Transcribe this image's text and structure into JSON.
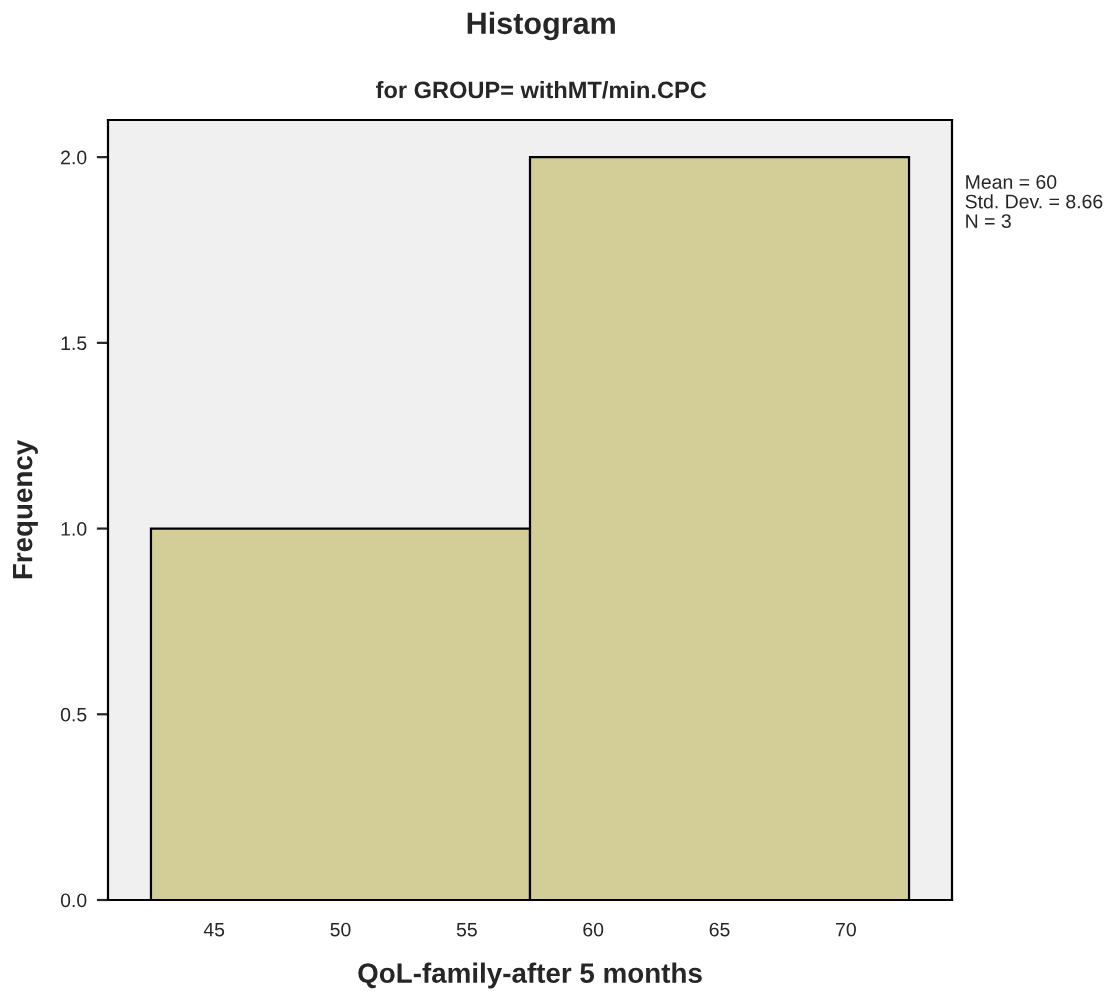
{
  "chart_data": {
    "type": "histogram",
    "title": "Histogram",
    "subtitle": "for GROUP= withMT/min.CPC",
    "xlabel": "QoL-family-after 5 months",
    "ylabel": "Frequency",
    "bins": [
      42.5,
      57.5,
      72.5
    ],
    "values": [
      1,
      2
    ],
    "color": "#d3ce98",
    "xlim": [
      40.8,
      74.2
    ],
    "xticks": [
      45,
      50,
      55,
      60,
      65,
      70
    ],
    "ylim": [
      0,
      2.1
    ],
    "yticks": [
      {
        "value": 0,
        "label": "0.0"
      },
      {
        "value": 0.5,
        "label": "0.5"
      },
      {
        "value": 1,
        "label": "1.0"
      },
      {
        "value": 1.5,
        "label": "1.5"
      },
      {
        "value": 2,
        "label": "2.0"
      }
    ],
    "annotations": [
      "Mean = 60",
      "Std. Dev. = 8.66",
      "N = 3"
    ],
    "grid": false,
    "legend": false
  }
}
